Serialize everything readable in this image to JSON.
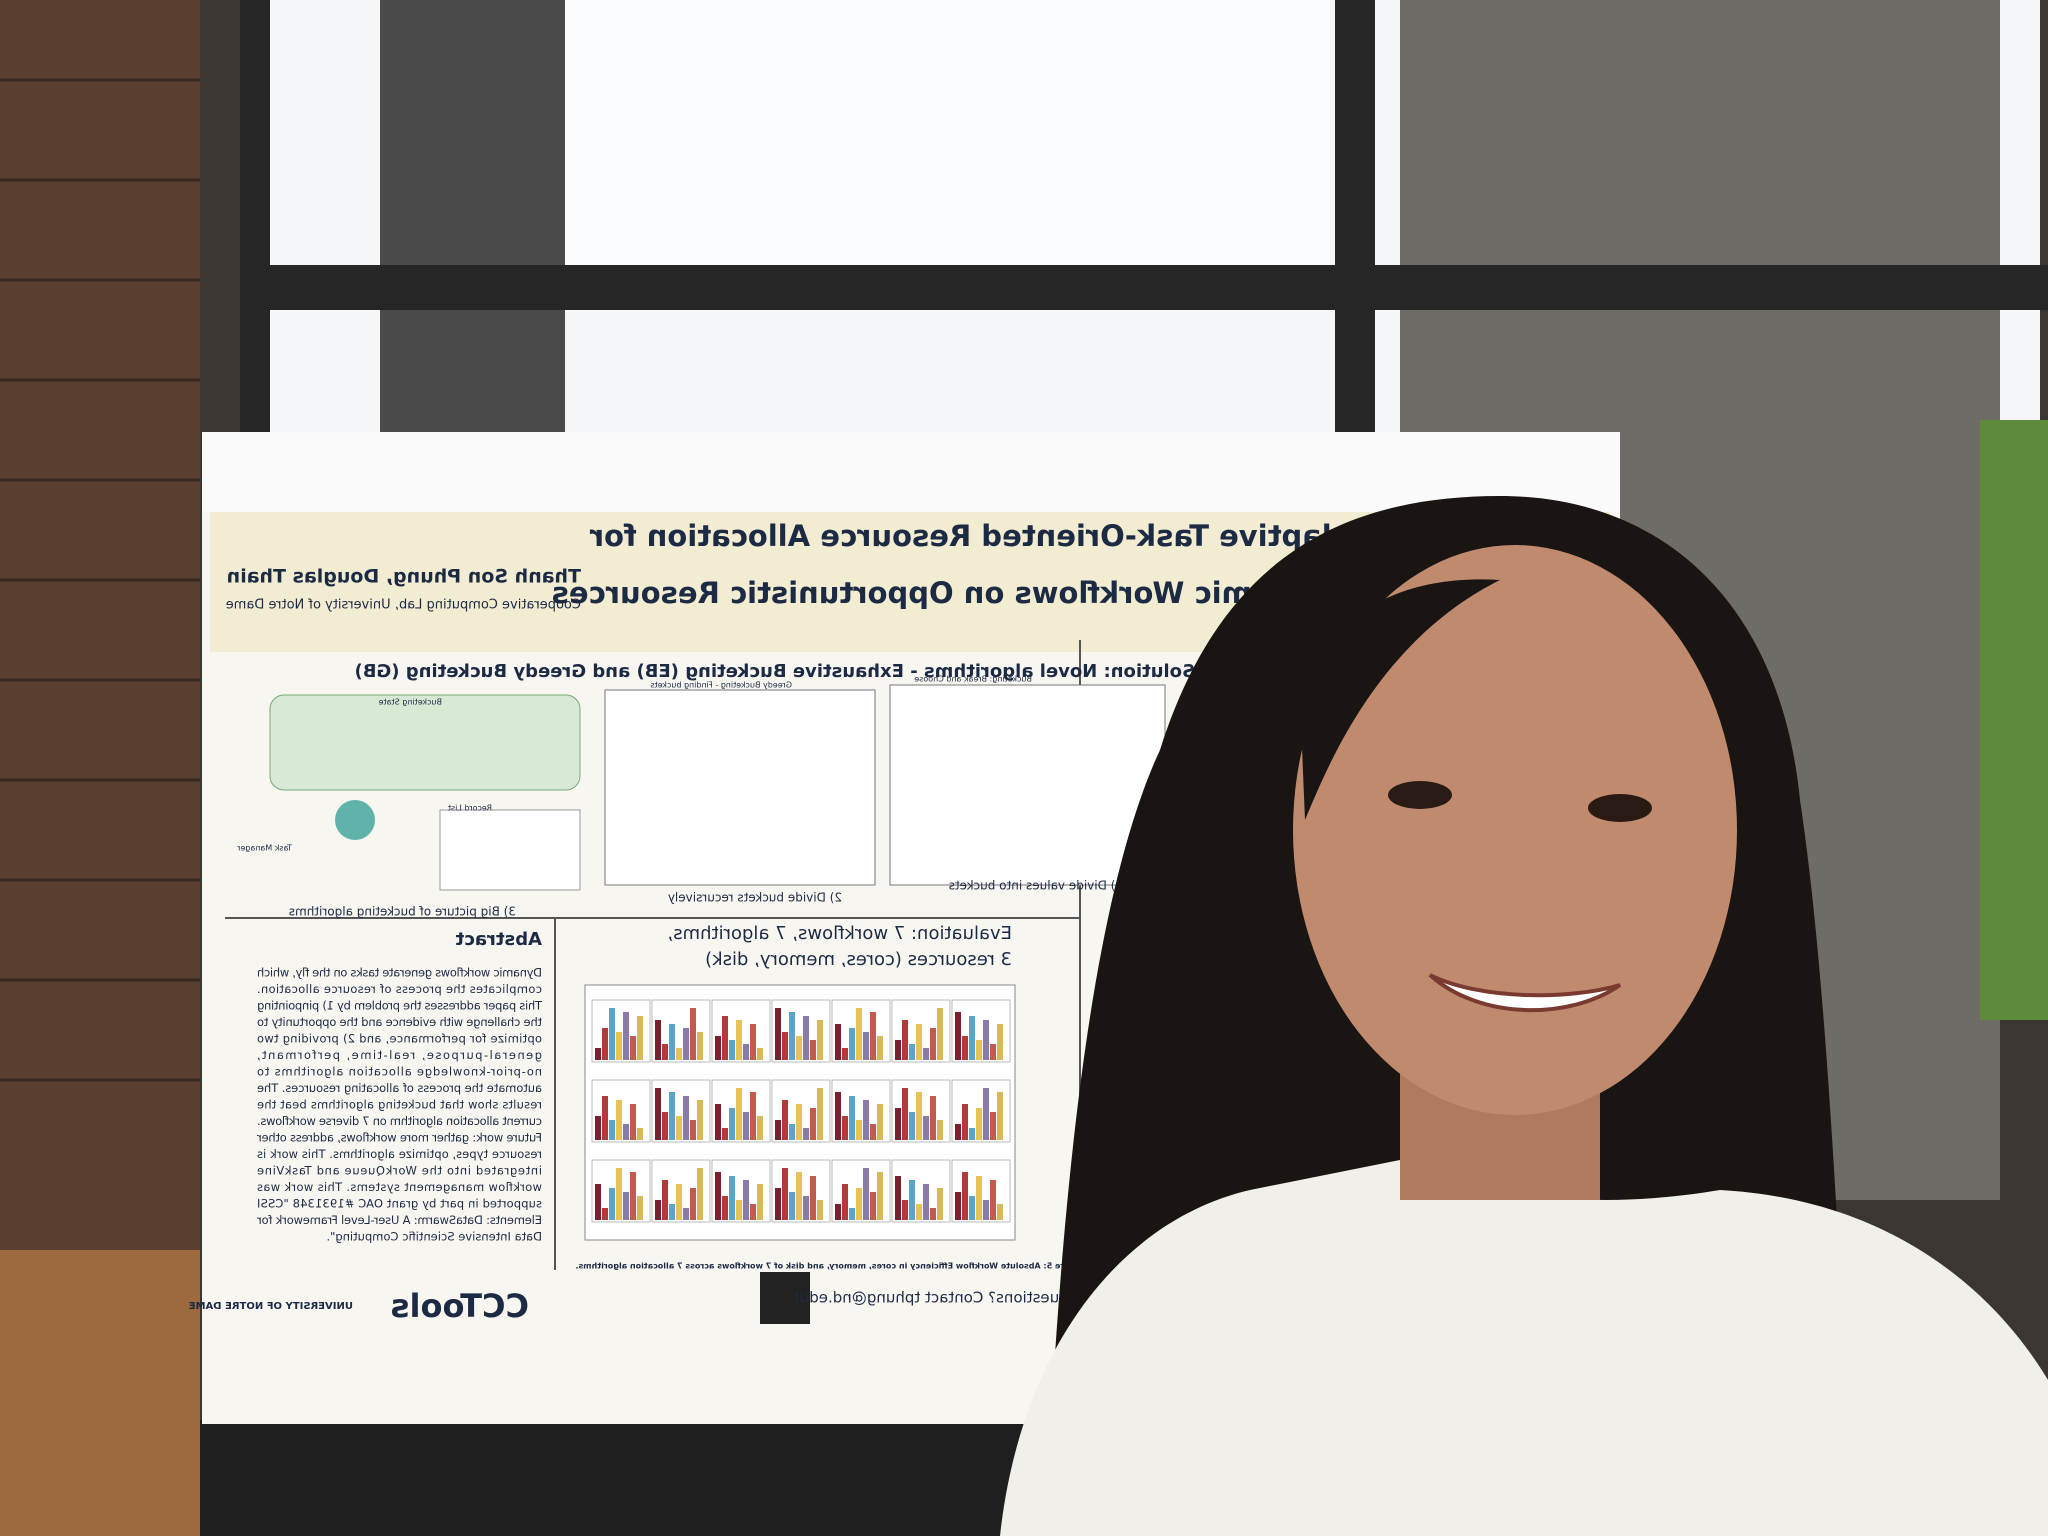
{
  "poster": {
    "title": [
      "Adaptive Task-Oriented Resource Allocation for",
      "Dynamic Workflows on Opportunistic Resources"
    ],
    "authors": "Thanh Son Phung, Douglas Thain",
    "affiliation": "Cooperative Computing Lab, University of Notre Dame",
    "solution_heading": "Solution: Novel algorithms - Exhaustive Bucketing (EB) and Greedy Bucketing (GB)",
    "diagram_labels": [
      "Bucketing State",
      "Record List",
      "Task Manager",
      "Greedy Bucketing - Finding buckets",
      "Bucketing: Break and Choose"
    ],
    "figure_captions": [
      "3) Big picture of bucketing algorithms",
      "2) Divide buckets recursively",
      "1) Divide values into buckets"
    ],
    "evaluation_heading": [
      "Evaluation: 7 workflows, 7 algorithms,",
      "3 resources (cores, memory, disk)"
    ],
    "abstract": {
      "heading": "Abstract",
      "lines": [
        "Dynamic workflows generate tasks on the fly, which",
        "complicates the process of resource allocation.",
        "This paper addresses the problem by 1) pinpointing",
        "the challenge with evidence and the opportunity to",
        "optimize for performance, and 2) providing two",
        "general-purpose, real-time, performant,",
        "no-prior-knowledge allocation algorithms to",
        "automate the process of allocating resources. The",
        "results show that bucketing algorithms beat the",
        "current allocation algorithm on 7 diverse workflows.",
        "Future work: gather more workflows, address other",
        "resource types, optimize algorithms. This work is",
        "integrated into the WorkQueue and TaskVine",
        "workflow management systems. This work was",
        "supported in part by grant OAC #1931348 \"CSSI",
        "Elements: DataSwarm: A User-Level Framework for",
        "Data Intensive Scientific Computing\"."
      ]
    },
    "figure5_caption": "Figure 5: Absolute Workflow Efficiency in cores, memory, and disk of 7 workflows across 7 allocation algorithms.",
    "contact": "Questions? Contact tphung@nd.edu!",
    "logos": [
      "CCTools",
      "UNIVERSITY OF NOTRE DAME"
    ]
  }
}
